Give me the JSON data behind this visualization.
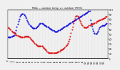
{
  "title": "Milw. -- outdoor temp. vs. outdoor (RH%)",
  "line_humidity_color": "#0000dd",
  "line_temp_color": "#dd0000",
  "bg_color": "#f0f0f0",
  "grid_color": "#aaaaaa",
  "fig_bg": "#f0f0f0",
  "humidity": [
    43,
    43,
    44,
    44,
    45,
    45,
    46,
    47,
    48,
    52,
    58,
    64,
    70,
    75,
    80,
    85,
    88,
    90,
    91,
    91,
    90,
    88,
    85,
    82,
    79,
    76,
    73,
    70,
    68,
    66,
    64,
    63,
    62,
    62,
    62,
    62,
    63,
    64,
    66,
    68,
    70,
    71,
    72,
    72,
    71,
    70,
    69,
    68,
    67,
    66,
    65,
    64,
    63,
    62,
    61,
    60,
    59,
    58,
    57,
    56,
    55,
    55,
    55,
    55,
    56,
    57,
    58,
    59,
    60,
    61,
    62,
    63,
    64,
    65,
    66,
    67,
    68,
    69,
    70,
    71,
    72,
    73,
    74,
    75,
    76,
    77,
    78,
    79,
    80,
    81,
    82,
    83,
    84,
    85,
    86,
    87,
    88,
    89,
    90,
    91,
    92,
    93,
    94,
    95,
    96,
    97,
    78,
    72,
    66,
    60,
    56,
    52,
    50,
    50,
    51,
    53,
    56,
    60,
    63,
    65,
    66,
    67,
    67,
    68,
    68,
    69,
    70,
    71
  ],
  "temperature": [
    58,
    57,
    56,
    55,
    54,
    53,
    52,
    52,
    51,
    50,
    49,
    49,
    48,
    48,
    47,
    47,
    46,
    46,
    46,
    46,
    46,
    47,
    47,
    47,
    47,
    47,
    47,
    46,
    45,
    44,
    43,
    42,
    41,
    40,
    39,
    38,
    37,
    36,
    35,
    35,
    35,
    35,
    35,
    35,
    35,
    34,
    33,
    32,
    31,
    30,
    29,
    28,
    27,
    27,
    27,
    27,
    27,
    27,
    27,
    27,
    27,
    27,
    27,
    28,
    28,
    29,
    29,
    30,
    30,
    31,
    31,
    32,
    33,
    34,
    35,
    36,
    37,
    39,
    41,
    44,
    47,
    51,
    55,
    59,
    63,
    66,
    69,
    71,
    72,
    72,
    71,
    69,
    67,
    65,
    63,
    61,
    60,
    59,
    58,
    58,
    58,
    58,
    59,
    59,
    60,
    60,
    61,
    61,
    62,
    62,
    63,
    63,
    64,
    64,
    65,
    65,
    66,
    66,
    67,
    67,
    68,
    68,
    69,
    69,
    70,
    70,
    71,
    71
  ],
  "temp_min": 20,
  "temp_max": 80,
  "hum_min": 0,
  "hum_max": 100,
  "n_points": 128
}
